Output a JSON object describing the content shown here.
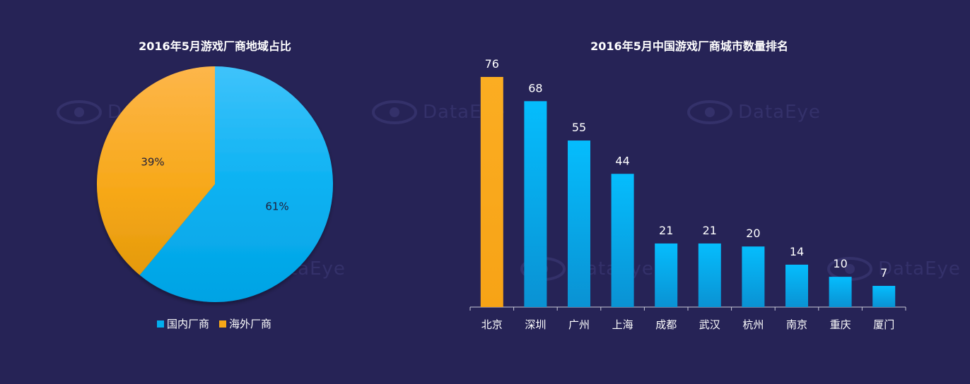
{
  "watermark": {
    "text": "DataEye"
  },
  "chart_data": [
    {
      "type": "pie",
      "title": "2016年5月游戏厂商地域占比",
      "slices": [
        {
          "label": "国内厂商",
          "value": 61,
          "display": "61%",
          "color": "#02aeee"
        },
        {
          "label": "海外厂商",
          "value": 39,
          "display": "39%",
          "color": "#f7a818"
        }
      ],
      "legend_position": "bottom"
    },
    {
      "type": "bar",
      "title": "2016年5月中国游戏厂商城市数量排名",
      "categories": [
        "北京",
        "深圳",
        "广州",
        "上海",
        "成都",
        "武汉",
        "杭州",
        "南京",
        "重庆",
        "厦门"
      ],
      "values": [
        76,
        68,
        55,
        44,
        21,
        21,
        20,
        14,
        10,
        7
      ],
      "highlight_index": 0,
      "highlight_color": "#f9aa1d",
      "bar_color": "#07b2ef",
      "ylim": [
        0,
        76
      ],
      "xlabel": "",
      "ylabel": "",
      "grid": false
    }
  ]
}
